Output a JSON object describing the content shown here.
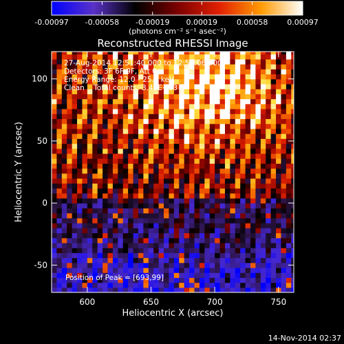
{
  "chart_data": {
    "type": "heatmap",
    "title": "Reconstructed RHESSI Image",
    "xlabel": "Heliocentric X (arcsec)",
    "ylabel": "Heliocentric Y (arcsec)",
    "xlim": [
      572,
      762
    ],
    "ylim": [
      -72,
      122
    ],
    "x_ticks": [
      600,
      650,
      700,
      750
    ],
    "y_ticks": [
      -50,
      0,
      50,
      100
    ],
    "colorbar": {
      "range": [
        -0.00097,
        0.00097
      ],
      "tick_values": [
        -0.00097,
        -0.00058,
        -0.00019,
        0.00019,
        0.00058,
        0.00097
      ],
      "tick_labels": [
        "-0.00097",
        "-0.00058",
        "-0.00019",
        "0.00019",
        "0.00058",
        "0.00097"
      ],
      "unit_label": "(photons cm⁻² s⁻¹ asec⁻²)",
      "colors": [
        "#0000ff",
        "#5a32c8",
        "#000000",
        "#7a0000",
        "#e02000",
        "#ff9a00",
        "#ffffff"
      ]
    },
    "grid": false,
    "map": {
      "description": "pixelated reconstructed flux map",
      "pixel_size_arcsec": 4,
      "peak_arcsec": [
        693,
        99
      ],
      "stripe_angle_deg": 15,
      "positive_region": "upper portion (Y > ~0)",
      "negative_region": "lower portion (Y < ~0)"
    },
    "annotations": [
      "27-Aug-2014 12:51:40.000 to 12:57:06.000",
      "Detectors: 3F 6F 9F, Att 0",
      "Energy Range: 12.0 - 25.0 keV",
      "Clean    Total counts: 3.45E+03",
      "Position of Peak = [693,99]"
    ]
  },
  "footer": {
    "timestamp": "14-Nov-2014 02:37"
  }
}
